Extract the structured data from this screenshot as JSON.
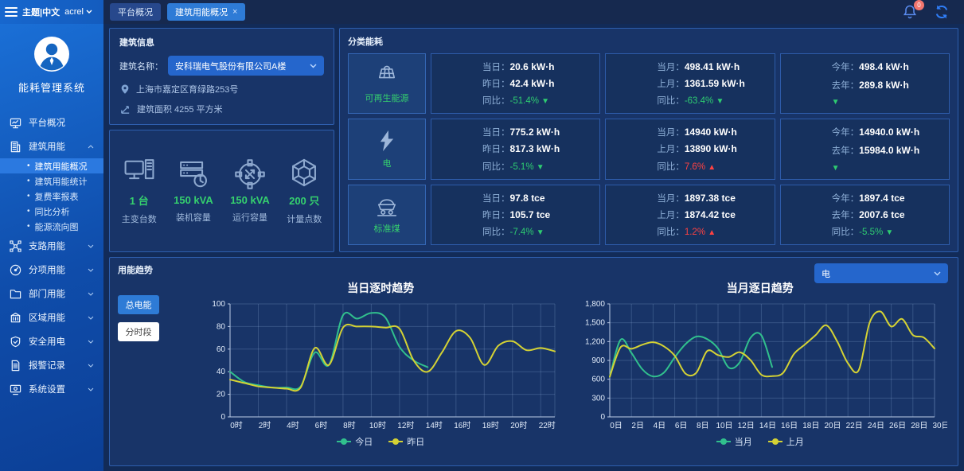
{
  "topbar": {
    "theme_label": "主题|中文",
    "user": "acrel",
    "notification_count": "0",
    "close_glyph": "×",
    "tabs": [
      {
        "label": "平台概况",
        "active": false,
        "closable": false
      },
      {
        "label": "建筑用能概况",
        "active": true,
        "closable": true
      }
    ]
  },
  "sidebar": {
    "app_title": "能耗管理系统",
    "bullet": "•",
    "items": [
      {
        "label": "平台概况",
        "icon": "monitor-icon",
        "expandable": false
      },
      {
        "label": "建筑用能",
        "icon": "building-icon",
        "expandable": true,
        "expanded": true,
        "children": [
          {
            "label": "建筑用能概况",
            "active": true
          },
          {
            "label": "建筑用能统计",
            "active": false
          },
          {
            "label": "复费率报表",
            "active": false
          },
          {
            "label": "同比分析",
            "active": false
          },
          {
            "label": "能源流向图",
            "active": false
          }
        ]
      },
      {
        "label": "支路用能",
        "icon": "branch-icon",
        "expandable": true,
        "expanded": false
      },
      {
        "label": "分项用能",
        "icon": "dial-icon",
        "expandable": true,
        "expanded": false
      },
      {
        "label": "部门用能",
        "icon": "folder-icon",
        "expandable": true,
        "expanded": false
      },
      {
        "label": "区域用能",
        "icon": "region-icon",
        "expandable": true,
        "expanded": false
      },
      {
        "label": "安全用电",
        "icon": "shield-icon",
        "expandable": true,
        "expanded": false
      },
      {
        "label": "报警记录",
        "icon": "report-icon",
        "expandable": true,
        "expanded": false
      },
      {
        "label": "系统设置",
        "icon": "settings-icon",
        "expandable": true,
        "expanded": false
      }
    ]
  },
  "building_info": {
    "panel_title": "建筑信息",
    "name_label": "建筑名称：",
    "name_value": "安科瑞电气股份有限公司A楼",
    "address": "上海市嘉定区育绿路253号",
    "area": "建筑面积 4255 平方米",
    "stats": [
      {
        "value": "1 台",
        "label": "主变台数",
        "icon": "computer-icon"
      },
      {
        "value": "150 kVA",
        "label": "装机容量",
        "icon": "server-icon"
      },
      {
        "value": "150 kVA",
        "label": "运行容量",
        "icon": "switch-icon"
      },
      {
        "value": "200 只",
        "label": "计量点数",
        "icon": "hub-icon"
      }
    ]
  },
  "energy_panel": {
    "panel_title": "分类能耗",
    "arrow_down": "▼",
    "arrow_up": "▲",
    "rows": [
      {
        "category": "可再生能源",
        "icon": "solar-icon",
        "cards": [
          {
            "l1": "当日：",
            "v1": "20.6 kW·h",
            "l2": "昨日：",
            "v2": "42.4 kW·h",
            "l3": "同比：",
            "v3": "-51.4%",
            "trend": "down"
          },
          {
            "l1": "当月：",
            "v1": "498.41 kW·h",
            "l2": "上月：",
            "v2": "1361.59 kW·h",
            "l3": "同比：",
            "v3": "-63.4%",
            "trend": "down"
          },
          {
            "l1": "今年：",
            "v1": "498.4 kW·h",
            "l2": "去年：",
            "v2": "289.8 kW·h",
            "l3": "",
            "v3": "",
            "trend": "down"
          }
        ]
      },
      {
        "category": "电",
        "icon": "lightning-icon",
        "cards": [
          {
            "l1": "当日：",
            "v1": "775.2 kW·h",
            "l2": "昨日：",
            "v2": "817.3 kW·h",
            "l3": "同比：",
            "v3": "-5.1%",
            "trend": "down"
          },
          {
            "l1": "当月：",
            "v1": "14940 kW·h",
            "l2": "上月：",
            "v2": "13890 kW·h",
            "l3": "同比：",
            "v3": "7.6%",
            "trend": "up"
          },
          {
            "l1": "今年：",
            "v1": "14940.0 kW·h",
            "l2": "去年：",
            "v2": "15984.0 kW·h",
            "l3": "",
            "v3": "",
            "trend": "down"
          }
        ]
      },
      {
        "category": "标准煤",
        "icon": "coal-icon",
        "cards": [
          {
            "l1": "当日：",
            "v1": "97.8 tce",
            "l2": "昨日：",
            "v2": "105.7 tce",
            "l3": "同比：",
            "v3": "-7.4%",
            "trend": "down"
          },
          {
            "l1": "当月：",
            "v1": "1897.38 tce",
            "l2": "上月：",
            "v2": "1874.42 tce",
            "l3": "同比：",
            "v3": "1.2%",
            "trend": "up"
          },
          {
            "l1": "今年：",
            "v1": "1897.4 tce",
            "l2": "去年：",
            "v2": "2007.6 tce",
            "l3": "同比：",
            "v3": "-5.5%",
            "trend": "down"
          }
        ]
      }
    ]
  },
  "trend_panel": {
    "panel_title": "用能趋势",
    "dropdown_value": "电",
    "buttons": [
      {
        "label": "总电能",
        "active": true
      },
      {
        "label": "分时段",
        "active": false
      }
    ]
  },
  "chart_data": [
    {
      "type": "line",
      "title": "当日逐时趋势",
      "xlabel": "",
      "ylabel": "",
      "ylim": [
        0,
        100
      ],
      "yticks": [
        0,
        20,
        40,
        60,
        80,
        100
      ],
      "ytick_labels": [
        "0",
        "20",
        "40",
        "60",
        "80",
        "100"
      ],
      "xmax": 23,
      "x_tick_values": [
        0,
        2,
        4,
        6,
        8,
        10,
        12,
        14,
        16,
        18,
        20,
        22
      ],
      "x_labels": [
        "0时",
        "2时",
        "4时",
        "6时",
        "8时",
        "10时",
        "12时",
        "14时",
        "16时",
        "18时",
        "20时",
        "22时"
      ],
      "grid": true,
      "legend_position": "bottom",
      "series": [
        {
          "name": "今日",
          "color": "#31c08d",
          "x_start": 0,
          "values": [
            40,
            31,
            28,
            26,
            26,
            27,
            57,
            46,
            90,
            87,
            92,
            88,
            62,
            50,
            44
          ]
        },
        {
          "name": "昨日",
          "color": "#d4d234",
          "x_start": 0,
          "values": [
            33,
            30,
            27,
            26,
            25,
            26,
            61,
            46,
            79,
            80,
            80,
            79,
            78,
            50,
            40,
            57,
            76,
            70,
            46,
            63,
            67,
            59,
            61,
            58
          ]
        }
      ]
    },
    {
      "type": "line",
      "title": "当月逐日趋势",
      "xlabel": "",
      "ylabel": "",
      "ylim": [
        0,
        1800
      ],
      "yticks": [
        0,
        300,
        600,
        900,
        1200,
        1500,
        1800
      ],
      "ytick_labels": [
        "0",
        "300",
        "600",
        "900",
        "1,200",
        "1,500",
        "1,800"
      ],
      "xmax": 30,
      "x_tick_values": [
        0,
        2,
        4,
        6,
        8,
        10,
        12,
        14,
        16,
        18,
        20,
        22,
        24,
        26,
        28,
        30
      ],
      "x_labels": [
        "0日",
        "2日",
        "4日",
        "6日",
        "8日",
        "10日",
        "12日",
        "14日",
        "16日",
        "18日",
        "20日",
        "22日",
        "24日",
        "26日",
        "28日",
        "30日"
      ],
      "grid": true,
      "legend_position": "bottom",
      "series": [
        {
          "name": "当月",
          "color": "#31c08d",
          "x_start": 0,
          "values": [
            640,
            1230,
            1020,
            760,
            645,
            705,
            950,
            1160,
            1280,
            1240,
            1090,
            785,
            870,
            1260,
            1300,
            795
          ]
        },
        {
          "name": "上月",
          "color": "#d4d234",
          "x_start": 0,
          "values": [
            640,
            1110,
            1085,
            1150,
            1190,
            1125,
            975,
            690,
            705,
            1050,
            985,
            955,
            1030,
            905,
            672,
            650,
            700,
            1000,
            1150,
            1300,
            1460,
            1205,
            855,
            745,
            1500,
            1680,
            1440,
            1560,
            1305,
            1265,
            1090
          ]
        }
      ]
    }
  ]
}
